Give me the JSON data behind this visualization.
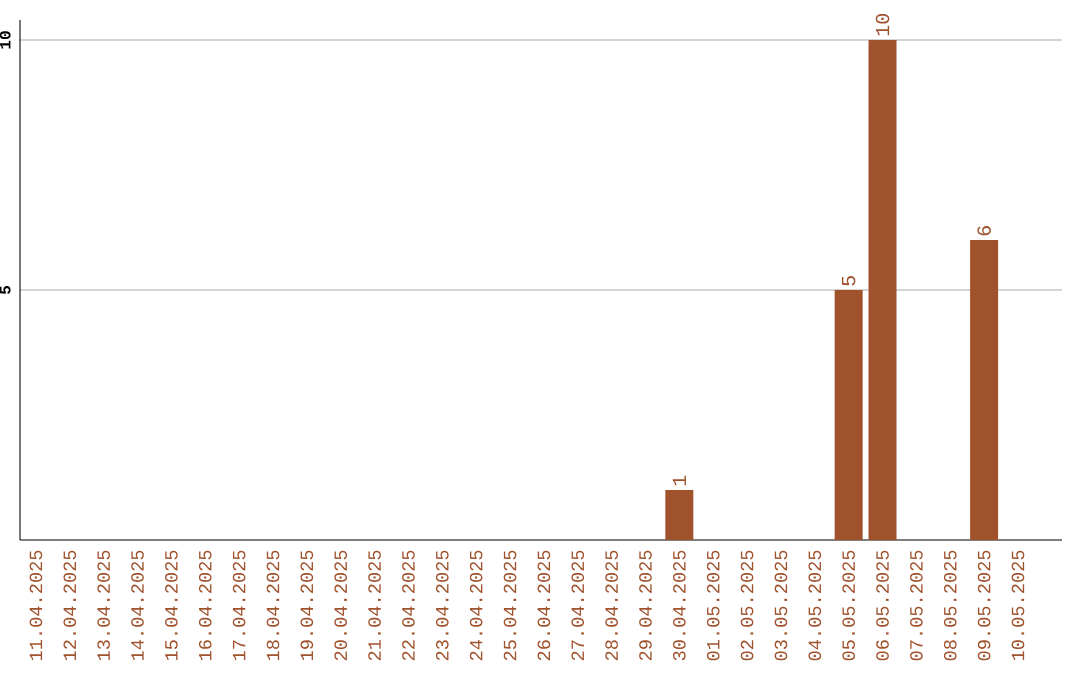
{
  "chart_data": {
    "type": "bar",
    "categories": [
      "11.04.2025",
      "12.04.2025",
      "13.04.2025",
      "14.04.2025",
      "15.04.2025",
      "16.04.2025",
      "17.04.2025",
      "18.04.2025",
      "19.04.2025",
      "20.04.2025",
      "21.04.2025",
      "22.04.2025",
      "23.04.2025",
      "24.04.2025",
      "25.04.2025",
      "26.04.2025",
      "27.04.2025",
      "28.04.2025",
      "29.04.2025",
      "30.04.2025",
      "01.05.2025",
      "02.05.2025",
      "03.05.2025",
      "04.05.2025",
      "05.05.2025",
      "06.05.2025",
      "07.05.2025",
      "08.05.2025",
      "09.05.2025",
      "10.05.2025"
    ],
    "values": [
      0,
      0,
      0,
      0,
      0,
      0,
      0,
      0,
      0,
      0,
      0,
      0,
      0,
      0,
      0,
      0,
      0,
      0,
      0,
      1,
      0,
      0,
      0,
      0,
      5,
      10,
      0,
      0,
      6,
      0
    ],
    "value_labels": [
      null,
      null,
      null,
      null,
      null,
      null,
      null,
      null,
      null,
      null,
      null,
      null,
      null,
      null,
      null,
      null,
      null,
      null,
      null,
      "1",
      null,
      null,
      null,
      null,
      "5",
      "10",
      null,
      null,
      "6",
      null
    ],
    "color": "#a0522d",
    "ylim": [
      0,
      10.4
    ],
    "yticks": [
      5,
      10
    ],
    "grid": "y"
  }
}
